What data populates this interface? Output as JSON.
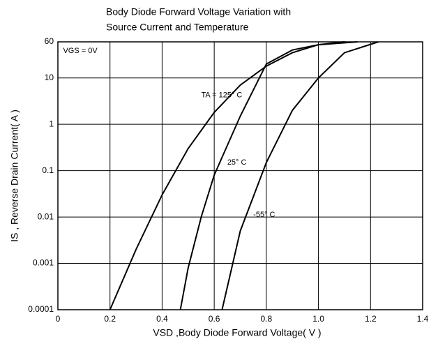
{
  "chart_data": {
    "type": "line",
    "title": [
      "Body Diode Forward Voltage Variation with",
      "Source Current and Temperature"
    ],
    "x_label": "VSD ,Body Diode Forward Voltage( V )",
    "y_label": "IS , Reverse Drain Current( A )",
    "xlim": [
      0,
      1.4
    ],
    "xticks": [
      0,
      0.2,
      0.4,
      0.6,
      0.8,
      {
        "value": 1,
        "label": "1.0"
      },
      1.2,
      1.4
    ],
    "ylim": [
      0.0001,
      60
    ],
    "yticks": [
      0.0001,
      0.001,
      0.01,
      0.1,
      1,
      10,
      60
    ],
    "y_log": true,
    "grid": true,
    "color": "#000000",
    "series": [
      {
        "name": "TA = 125° C",
        "x": [
          0.2,
          0.3,
          0.4,
          0.5,
          0.6,
          0.7,
          0.8,
          0.9,
          1.0,
          1.1
        ],
        "values": [
          0.0001,
          0.002,
          0.03,
          0.3,
          1.8,
          7,
          18,
          35,
          52,
          60
        ]
      },
      {
        "name": "25° C",
        "x": [
          0.47,
          0.5,
          0.55,
          0.6,
          0.7,
          0.8,
          0.9,
          1.0,
          1.15
        ],
        "values": [
          0.0001,
          0.0008,
          0.01,
          0.08,
          1.5,
          20,
          40,
          52,
          60
        ]
      },
      {
        "name": "-55° C",
        "x": [
          0.63,
          0.7,
          0.8,
          0.9,
          1.0,
          1.1,
          1.23
        ],
        "values": [
          0.0001,
          0.005,
          0.15,
          2,
          10,
          35,
          60
        ]
      }
    ],
    "annotations": [
      {
        "text": "VGS = 0V",
        "x": 0.02,
        "y": 38
      }
    ]
  }
}
